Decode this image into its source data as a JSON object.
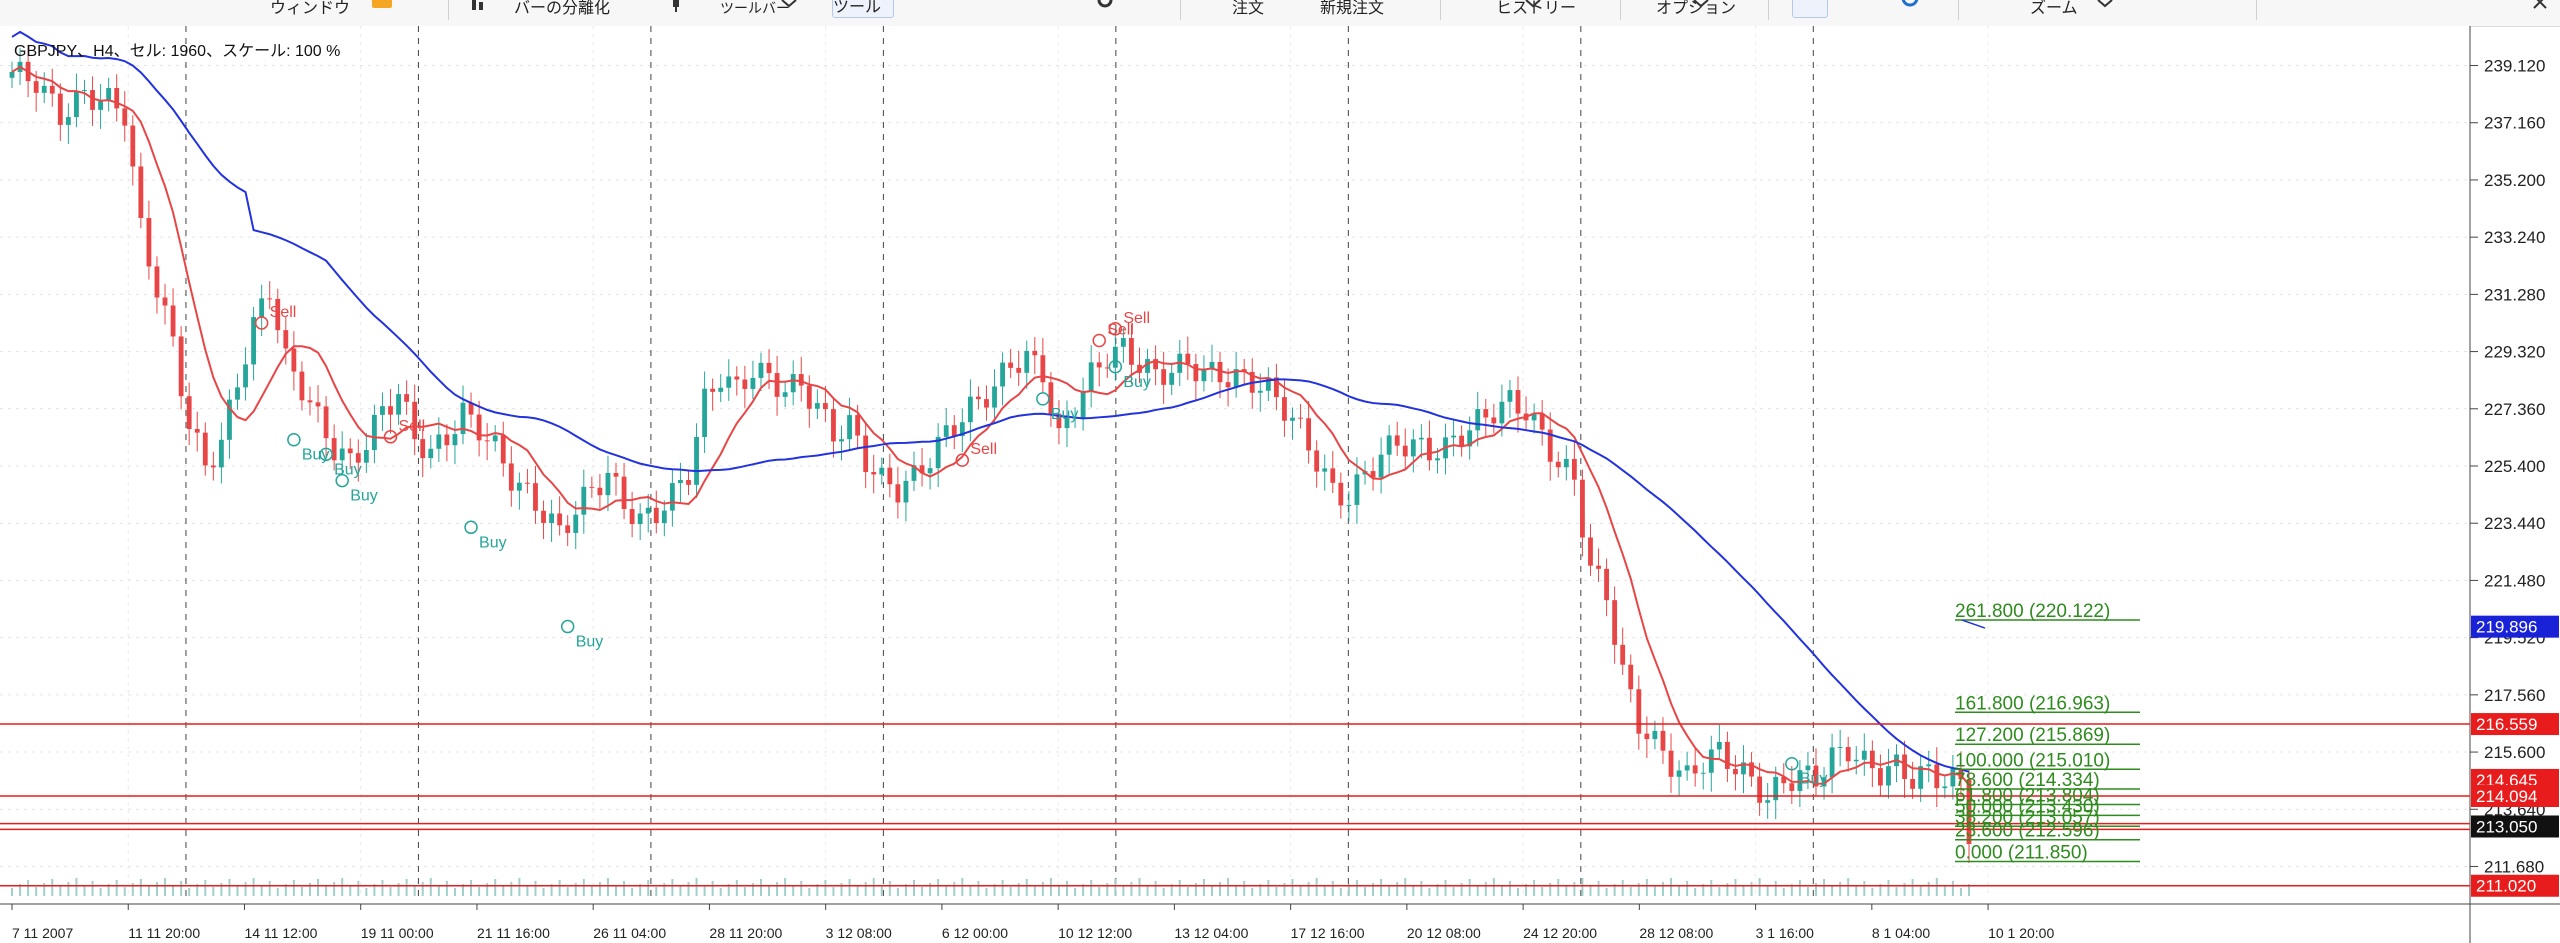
{
  "toolbar": {
    "items": [
      "ウィンドウ",
      "バーの分離化",
      "ツールバー",
      "ツール",
      "注文",
      "新規注文",
      "ヒストリー",
      "オプション",
      "ズーム"
    ],
    "accent": "#f5a623"
  },
  "chart_data": {
    "type": "candlestick",
    "title": "GBPJPY、H4、セル: 1960、スケール: 100 %",
    "ylim": [
      210.6,
      240.2
    ],
    "y_ticks": [
      "239.120",
      "237.160",
      "235.200",
      "233.240",
      "231.280",
      "229.320",
      "227.360",
      "225.400",
      "223.440",
      "221.480",
      "219.520",
      "217.560",
      "215.600",
      "213.640",
      "211.680"
    ],
    "x_ticks": [
      "7 11 2007",
      "11 11 20:00",
      "14 11 12:00",
      "19 11 00:00",
      "21 11 16:00",
      "26 11 04:00",
      "28 11 20:00",
      "3 12 08:00",
      "6 12 00:00",
      "10 12 12:00",
      "13 12 04:00",
      "17 12 16:00",
      "20 12 08:00",
      "24 12 20:00",
      "28 12 08:00",
      "3 1 16:00",
      "8 1 04:00",
      "10 1 20:00"
    ],
    "grid": true,
    "colors": {
      "up": "#26a69a",
      "down": "#e84646",
      "ma_fast": "#e84646",
      "ma_slow": "#2233dd",
      "fib": "#2e8b1e",
      "hline": "#e81c1c",
      "signal_buy": "#26a69a",
      "signal_sell": "#e84646"
    },
    "price_tags": [
      {
        "label": "219.896",
        "value": 219.896,
        "color": "#1a22d8"
      },
      {
        "label": "216.559",
        "value": 216.559,
        "color": "#e81c1c"
      },
      {
        "label": "214.645",
        "value": 214.645,
        "color": "#e81c1c"
      },
      {
        "label": "214.094",
        "value": 214.094,
        "color": "#e81c1c"
      },
      {
        "label": "213.050",
        "value": 213.05,
        "color": "#111111"
      },
      {
        "label": "211.020",
        "value": 211.02,
        "color": "#e81c1c"
      }
    ],
    "horizontal_lines": [
      216.559,
      214.094,
      213.15,
      212.95,
      211.02
    ],
    "fib_levels": [
      {
        "label": "261.800 (220.122)",
        "value": 220.122
      },
      {
        "label": "161.800 (216.963)",
        "value": 216.963
      },
      {
        "label": "127.200 (215.869)",
        "value": 215.869
      },
      {
        "label": "100.000 (215.010)",
        "value": 215.01
      },
      {
        "label": "78.600 (214.334)",
        "value": 214.334
      },
      {
        "label": "61.800 (213.804)",
        "value": 213.804
      },
      {
        "label": "50.000 (213.430)",
        "value": 213.43
      },
      {
        "label": "38.200 (213.057)",
        "value": 213.057
      },
      {
        "label": "23.600 (212.596)",
        "value": 212.596
      },
      {
        "label": "0.000 (211.850)",
        "value": 211.85
      }
    ],
    "price_path": [
      [
        0,
        238.9
      ],
      [
        3,
        238.6
      ],
      [
        6,
        237.4
      ],
      [
        9,
        238.1
      ],
      [
        12,
        237.9
      ],
      [
        14,
        237.5
      ],
      [
        16,
        233.5
      ],
      [
        18,
        231.5
      ],
      [
        20,
        229.6
      ],
      [
        22,
        226.8
      ],
      [
        24,
        225.4
      ],
      [
        26,
        226.2
      ],
      [
        28,
        228.3
      ],
      [
        30,
        230.2
      ],
      [
        32,
        231.5
      ],
      [
        34,
        229.0
      ],
      [
        36,
        228.1
      ],
      [
        38,
        227.0
      ],
      [
        40,
        226.0
      ],
      [
        42,
        225.5
      ],
      [
        44,
        226.2
      ],
      [
        46,
        227.3
      ],
      [
        48,
        227.9
      ],
      [
        50,
        226.4
      ],
      [
        52,
        225.8
      ],
      [
        54,
        226.4
      ],
      [
        56,
        227.2
      ],
      [
        58,
        226.7
      ],
      [
        60,
        226.0
      ],
      [
        62,
        225.0
      ],
      [
        64,
        224.4
      ],
      [
        66,
        223.8
      ],
      [
        68,
        223.1
      ],
      [
        70,
        223.9
      ],
      [
        72,
        224.6
      ],
      [
        74,
        225.1
      ],
      [
        76,
        224.1
      ],
      [
        78,
        223.5
      ],
      [
        80,
        223.8
      ],
      [
        82,
        224.4
      ],
      [
        84,
        225.2
      ],
      [
        86,
        227.6
      ],
      [
        88,
        228.5
      ],
      [
        90,
        228.0
      ],
      [
        92,
        228.7
      ],
      [
        94,
        228.4
      ],
      [
        96,
        228.0
      ],
      [
        98,
        228.2
      ],
      [
        100,
        227.4
      ],
      [
        102,
        226.5
      ],
      [
        104,
        226.8
      ],
      [
        106,
        225.6
      ],
      [
        108,
        224.9
      ],
      [
        110,
        224.6
      ],
      [
        112,
        225.0
      ],
      [
        114,
        225.7
      ],
      [
        116,
        226.5
      ],
      [
        118,
        227.1
      ],
      [
        120,
        227.6
      ],
      [
        122,
        228.1
      ],
      [
        124,
        228.9
      ],
      [
        126,
        229.1
      ],
      [
        128,
        228.6
      ],
      [
        130,
        226.3
      ],
      [
        132,
        227.5
      ],
      [
        134,
        228.5
      ],
      [
        136,
        229.2
      ],
      [
        138,
        229.4
      ],
      [
        140,
        228.9
      ],
      [
        142,
        228.5
      ],
      [
        144,
        228.7
      ],
      [
        146,
        228.9
      ],
      [
        148,
        228.6
      ],
      [
        150,
        228.5
      ],
      [
        152,
        228.4
      ],
      [
        154,
        228.3
      ],
      [
        156,
        228.0
      ],
      [
        158,
        227.4
      ],
      [
        160,
        226.6
      ],
      [
        162,
        225.6
      ],
      [
        164,
        224.5
      ],
      [
        166,
        224.3
      ],
      [
        168,
        225.1
      ],
      [
        170,
        225.8
      ],
      [
        172,
        226.2
      ],
      [
        174,
        226.1
      ],
      [
        176,
        225.9
      ],
      [
        178,
        226.0
      ],
      [
        180,
        226.5
      ],
      [
        182,
        226.9
      ],
      [
        184,
        227.3
      ],
      [
        186,
        227.6
      ],
      [
        188,
        227.3
      ],
      [
        190,
        226.4
      ],
      [
        192,
        225.5
      ],
      [
        194,
        224.9
      ],
      [
        196,
        221.9
      ],
      [
        198,
        221.0
      ],
      [
        200,
        218.3
      ],
      [
        202,
        216.6
      ],
      [
        204,
        215.9
      ],
      [
        206,
        215.2
      ],
      [
        208,
        214.7
      ],
      [
        210,
        215.3
      ],
      [
        212,
        215.6
      ],
      [
        214,
        215.1
      ],
      [
        216,
        214.6
      ],
      [
        218,
        214.0
      ],
      [
        220,
        214.6
      ],
      [
        222,
        214.8
      ],
      [
        224,
        214.7
      ],
      [
        226,
        215.4
      ],
      [
        228,
        215.7
      ],
      [
        230,
        215.2
      ],
      [
        232,
        214.9
      ],
      [
        234,
        215.1
      ],
      [
        236,
        214.7
      ],
      [
        238,
        214.9
      ],
      [
        240,
        214.6
      ],
      [
        242,
        214.6
      ],
      [
        243,
        212.9
      ]
    ],
    "bar_count": 244,
    "signals": [
      {
        "label": "Sell",
        "bar": 31,
        "value": 230.3,
        "kind": "sell"
      },
      {
        "label": "Buy",
        "bar": 35,
        "value": 226.3,
        "kind": "buy"
      },
      {
        "label": "Buy",
        "bar": 39,
        "value": 225.8,
        "kind": "buy"
      },
      {
        "label": "Buy",
        "bar": 41,
        "value": 224.9,
        "kind": "buy"
      },
      {
        "label": "Sell",
        "bar": 47,
        "value": 226.4,
        "kind": "sell"
      },
      {
        "label": "Buy",
        "bar": 57,
        "value": 223.3,
        "kind": "buy"
      },
      {
        "label": "Buy",
        "bar": 69,
        "value": 219.9,
        "kind": "buy"
      },
      {
        "label": "Sell",
        "bar": 118,
        "value": 225.6,
        "kind": "sell"
      },
      {
        "label": "Buy",
        "bar": 128,
        "value": 227.7,
        "kind": "buy"
      },
      {
        "label": "Sell",
        "bar": 135,
        "value": 229.7,
        "kind": "sell"
      },
      {
        "label": "Sell",
        "bar": 137,
        "value": 230.1,
        "kind": "sell"
      },
      {
        "label": "Buy",
        "bar": 137,
        "value": 228.8,
        "kind": "buy"
      },
      {
        "label": "Buy",
        "bar": 221,
        "value": 215.2,
        "kind": "buy"
      }
    ]
  }
}
